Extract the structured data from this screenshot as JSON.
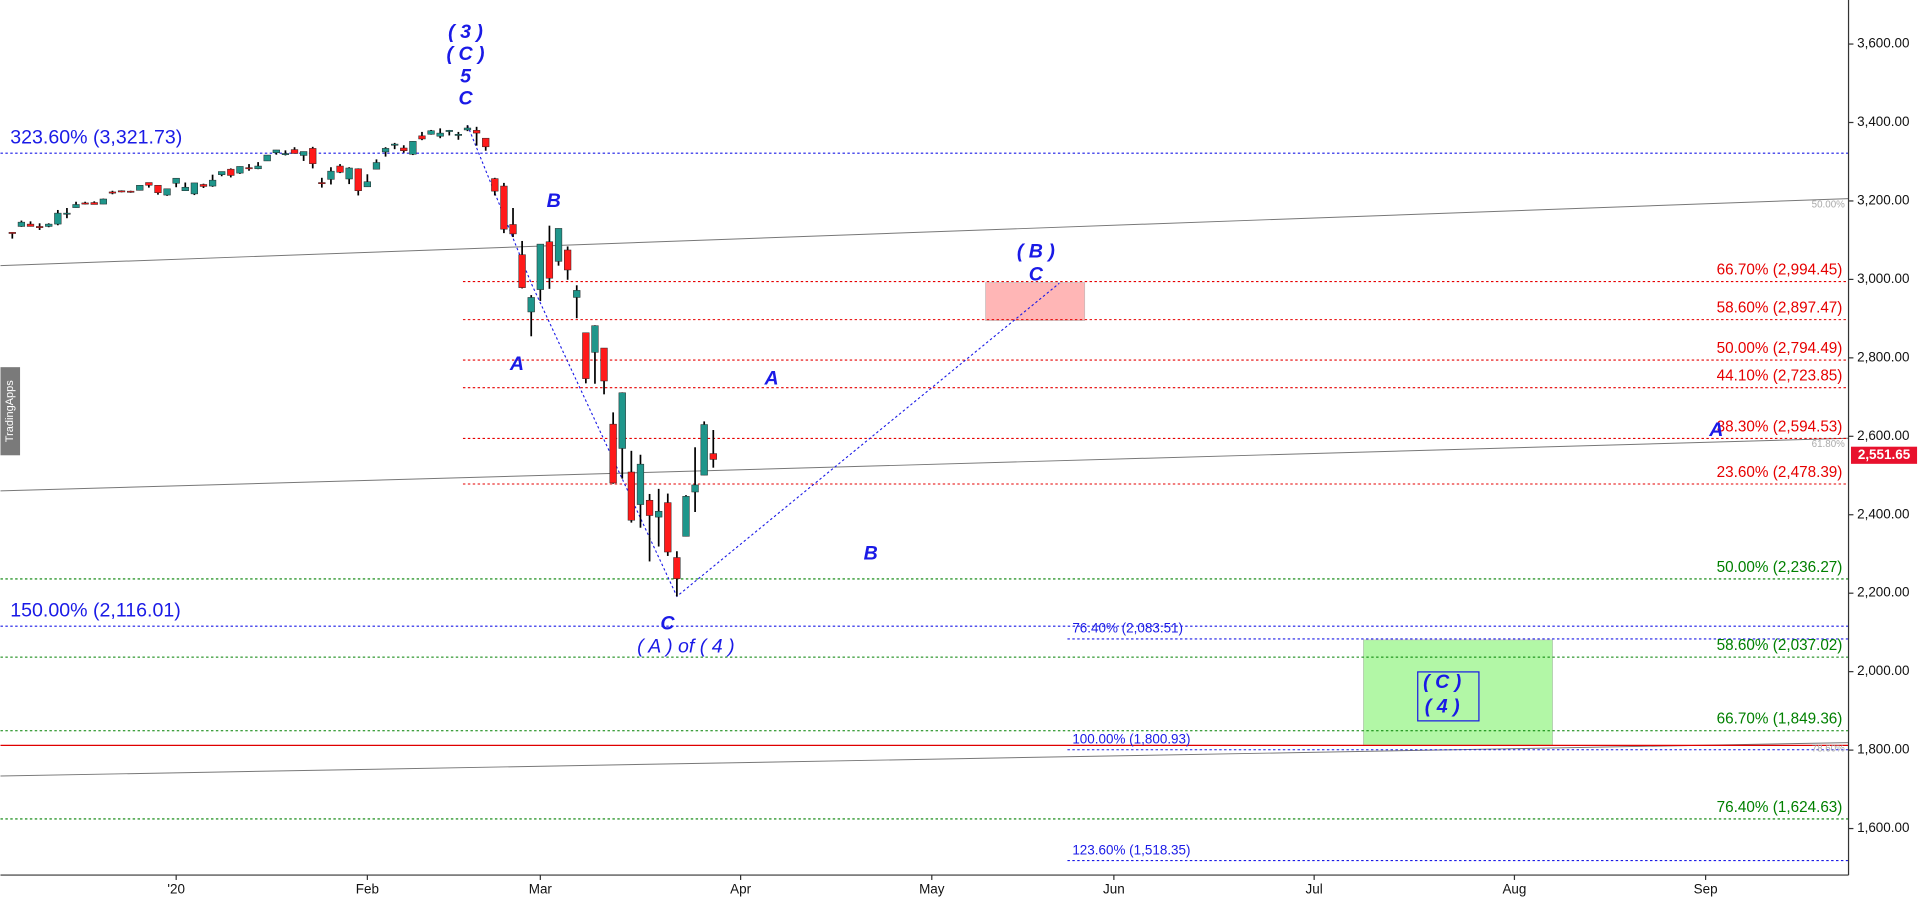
{
  "side_tab": "TradingApps",
  "chart_data": {
    "type": "candlestick",
    "x": [
      -18,
      -17,
      -16,
      -15,
      -14,
      -13,
      -12,
      -11,
      -10,
      -9,
      -8,
      -7,
      -6,
      -5,
      -4,
      -3,
      -2,
      -1,
      0,
      1,
      2,
      3,
      4,
      5,
      6,
      7,
      8,
      9,
      10,
      11,
      12,
      13,
      14,
      15,
      16,
      17,
      18,
      19,
      20,
      21,
      22,
      23,
      24,
      25,
      26,
      27,
      28,
      29,
      30,
      31,
      32,
      33,
      34,
      35,
      36,
      37,
      38,
      39,
      40,
      41,
      42,
      43,
      44,
      45,
      46,
      47,
      48,
      49,
      50,
      51,
      52,
      53,
      54,
      55,
      56,
      57,
      58,
      59
    ],
    "open": [
      3120,
      3135,
      3141,
      3135,
      3135,
      3141,
      3167,
      3183,
      3195,
      3196,
      3192,
      3223,
      3226,
      3225,
      3227,
      3247,
      3240,
      3215,
      3245,
      3226,
      3218,
      3242,
      3238,
      3267,
      3281,
      3271,
      3285,
      3282,
      3302,
      3323,
      3321,
      3331,
      3316,
      3334,
      3247,
      3255,
      3289,
      3256,
      3282,
      3236,
      3281,
      3325,
      3344,
      3335,
      3319,
      3366,
      3370,
      3365,
      3378,
      3370,
      3381,
      3380,
      3360,
      3257,
      3238,
      3140,
      3063,
      2917,
      2974,
      3096,
      3046,
      3075,
      2954,
      2864,
      2814,
      2825,
      2631,
      2569,
      2509,
      2426,
      2437,
      2394,
      2431,
      2291,
      2345,
      2458,
      2501,
      2556
    ],
    "high": [
      3120,
      3150,
      3148,
      3143,
      3143,
      3177,
      3182,
      3198,
      3198,
      3199,
      3206,
      3226,
      3227,
      3226,
      3240,
      3247,
      3240,
      3231,
      3258,
      3247,
      3246,
      3244,
      3267,
      3275,
      3283,
      3288,
      3294,
      3299,
      3317,
      3330,
      3329,
      3337,
      3326,
      3338,
      3259,
      3286,
      3294,
      3286,
      3283,
      3268,
      3306,
      3337,
      3348,
      3342,
      3352,
      3376,
      3381,
      3385,
      3381,
      3376,
      3393,
      3389,
      3360,
      3259,
      3246,
      3182,
      3098,
      2960,
      3090,
      3137,
      3130,
      3084,
      2985,
      2864,
      2883,
      2825,
      2661,
      2712,
      2563,
      2553,
      2453,
      2466,
      2454,
      2307,
      2450,
      2572,
      2638,
      2616
    ],
    "low": [
      3104,
      3134,
      3135,
      3126,
      3133,
      3138,
      3156,
      3183,
      3191,
      3191,
      3192,
      3217,
      3222,
      3221,
      3227,
      3234,
      3216,
      3213,
      3235,
      3226,
      3215,
      3233,
      3236,
      3263,
      3260,
      3269,
      3277,
      3281,
      3302,
      3318,
      3316,
      3321,
      3302,
      3283,
      3234,
      3242,
      3271,
      3243,
      3214,
      3236,
      3281,
      3313,
      3332,
      3323,
      3317,
      3355,
      3369,
      3360,
      3367,
      3356,
      3378,
      3341,
      3328,
      3214,
      3118,
      3108,
      2977,
      2855,
      2945,
      2976,
      3035,
      2999,
      2901,
      2735,
      2734,
      2707,
      2479,
      2492,
      2380,
      2367,
      2281,
      2319,
      2295,
      2192,
      2345,
      2407,
      2501,
      2520
    ],
    "close": [
      3117,
      3146,
      3135,
      3132,
      3141,
      3169,
      3169,
      3191,
      3193,
      3191,
      3205,
      3221,
      3224,
      3223,
      3240,
      3240,
      3221,
      3231,
      3258,
      3235,
      3246,
      3237,
      3253,
      3275,
      3265,
      3288,
      3283,
      3289,
      3317,
      3330,
      3321,
      3321,
      3326,
      3295,
      3244,
      3276,
      3273,
      3284,
      3226,
      3249,
      3298,
      3334,
      3345,
      3328,
      3352,
      3358,
      3379,
      3373,
      3380,
      3370,
      3386,
      3373,
      3338,
      3225,
      3128,
      3116,
      2979,
      2954,
      3090,
      3003,
      3130,
      3024,
      2972,
      2747,
      2882,
      2741,
      2481,
      2711,
      2386,
      2529,
      2398,
      2409,
      2305,
      2237,
      2447,
      2476,
      2630,
      2541
    ],
    "up_color": "#1f968b",
    "down_color": "#ff1a1a",
    "xlim": [
      -19.3,
      183.7
    ],
    "xticks": [
      {
        "value": 0,
        "label": "'20"
      },
      {
        "value": 21,
        "label": "Feb"
      },
      {
        "value": 40,
        "label": "Mar"
      },
      {
        "value": 62,
        "label": "Apr"
      },
      {
        "value": 83,
        "label": "May"
      },
      {
        "value": 103,
        "label": "Jun"
      },
      {
        "value": 125,
        "label": "Jul"
      },
      {
        "value": 147,
        "label": "Aug"
      },
      {
        "value": 168,
        "label": "Sep"
      }
    ],
    "ylim": [
      1481.4,
      3712.3
    ],
    "yticks": [
      {
        "value": 1600,
        "label": "1,600.00"
      },
      {
        "value": 1800,
        "label": "1,800.00"
      },
      {
        "value": 2000,
        "label": "2,000.00"
      },
      {
        "value": 2200,
        "label": "2,200.00"
      },
      {
        "value": 2400,
        "label": "2,400.00"
      },
      {
        "value": 2600,
        "label": "2,600.00"
      },
      {
        "value": 2800,
        "label": "2,800.00"
      },
      {
        "value": 3000,
        "label": "3,000.00"
      },
      {
        "value": 3200,
        "label": "3,200.00"
      },
      {
        "value": 3400,
        "label": "3,400.00"
      },
      {
        "value": 3600,
        "label": "3,600.00"
      }
    ],
    "last_price": {
      "value": 2551.65,
      "label": "2,551.65",
      "color": "#e8112d"
    },
    "fib_levels": [
      {
        "value": 3321.73,
        "label": "323.60% (3,321.73)",
        "color": "#1a1ae6",
        "x_start": -19.3,
        "label_position": "left"
      },
      {
        "value": 2116.01,
        "label": "150.00% (2,116.01)",
        "color": "#1a1ae6",
        "x_start": -19.3,
        "label_position": "left"
      },
      {
        "value": 2994.45,
        "label": "66.70% (2,994.45)",
        "color": "#e60000",
        "x_start": 31.5,
        "label_position": "right"
      },
      {
        "value": 2897.47,
        "label": "58.60% (2,897.47)",
        "color": "#e60000",
        "x_start": 31.5,
        "label_position": "right"
      },
      {
        "value": 2794.49,
        "label": "50.00% (2,794.49)",
        "color": "#e60000",
        "x_start": 31.5,
        "label_position": "right"
      },
      {
        "value": 2723.85,
        "label": "44.10% (2,723.85)",
        "color": "#e60000",
        "x_start": 31.5,
        "label_position": "right"
      },
      {
        "value": 2594.53,
        "label": "38.30% (2,594.53)",
        "color": "#e60000",
        "x_start": 31.5,
        "label_position": "right"
      },
      {
        "value": 2478.39,
        "label": "23.60% (2,478.39)",
        "color": "#e60000",
        "x_start": 31.5,
        "label_position": "right"
      },
      {
        "value": 2236.27,
        "label": "50.00% (2,236.27)",
        "color": "#008000",
        "x_start": -19.3,
        "label_position": "right"
      },
      {
        "value": 2037.02,
        "label": "58.60% (2,037.02)",
        "color": "#008000",
        "x_start": -19.3,
        "label_position": "right"
      },
      {
        "value": 1849.36,
        "label": "66.70% (1,849.36)",
        "color": "#008000",
        "x_start": -19.3,
        "label_position": "right"
      },
      {
        "value": 1624.63,
        "label": "76.40% (1,624.63)",
        "color": "#008000",
        "x_start": -19.3,
        "label_position": "right"
      },
      {
        "value": 2083.51,
        "label": "76.40% (2,083.51)",
        "color": "#1a1ae6",
        "x_start": 97.9,
        "label_position": "start"
      },
      {
        "value": 1800.93,
        "label": "100.00% (1,800.93)",
        "color": "#1a1ae6",
        "x_start": 97.9,
        "label_position": "start"
      },
      {
        "value": 1518.35,
        "label": "123.60% (1,518.35)",
        "color": "#1a1ae6",
        "x_start": 97.9,
        "label_position": "start"
      }
    ],
    "trend_lines": [
      {
        "values": [
          3035,
          3206
        ],
        "label": "50.00%"
      },
      {
        "values": [
          2461,
          2595
        ],
        "label": "61.80%"
      },
      {
        "values": [
          1734,
          1819
        ],
        "label": "78.60%"
      }
    ],
    "hline": {
      "value": 1812,
      "color": "#e00000"
    },
    "wave_path": {
      "x": [
        32,
        39,
        55,
        97
      ],
      "values": [
        3393,
        2990,
        2192,
        2990
      ],
      "color": "#1a1ae6"
    },
    "zones": [
      {
        "x": [
          88.9,
          99.8
        ],
        "values": [
          2992,
          2895
        ],
        "color": "#ffb6b6"
      },
      {
        "x": [
          130.4,
          151.2
        ],
        "values": [
          2081,
          1812
        ],
        "color": "#b2f7a6"
      }
    ],
    "annotations": [
      "( 3 )",
      "( C )",
      "5",
      "C",
      "B",
      "A",
      "A",
      "B",
      "( B )",
      "C",
      "C",
      "( A ) of ( 4 )",
      "A",
      "( C )",
      "( 4 )"
    ]
  }
}
